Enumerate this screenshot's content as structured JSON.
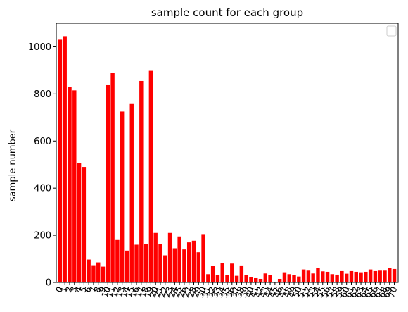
{
  "chart_data": {
    "type": "bar",
    "title": "sample count for each group",
    "xlabel": "",
    "ylabel": "sample number",
    "color": "#ff0000",
    "grid": false,
    "legend": "top-right",
    "ylim": [
      0,
      1100
    ],
    "yticks": [
      0,
      200,
      400,
      600,
      800,
      1000
    ],
    "categories": [
      "0",
      "1",
      "2",
      "3",
      "4",
      "5",
      "6",
      "7",
      "8",
      "9",
      "10",
      "11",
      "12",
      "13",
      "14",
      "15",
      "16",
      "17",
      "18",
      "19",
      "20",
      "21",
      "22",
      "23",
      "24",
      "25",
      "26",
      "27",
      "28",
      "29",
      "30",
      "31",
      "32",
      "33",
      "34",
      "35",
      "36",
      "37",
      "38",
      "39",
      "40",
      "41",
      "42",
      "43",
      "44",
      "45",
      "46",
      "47",
      "48",
      "49",
      "50",
      "51",
      "52",
      "53",
      "54",
      "55",
      "56",
      "57",
      "58",
      "59",
      "60",
      "61",
      "62",
      "63",
      "64",
      "65",
      "66",
      "67",
      "68",
      "69",
      "70"
    ],
    "values": [
      1030,
      1045,
      830,
      815,
      507,
      490,
      97,
      73,
      85,
      67,
      840,
      890,
      180,
      725,
      135,
      760,
      160,
      855,
      162,
      898,
      210,
      163,
      115,
      210,
      145,
      195,
      140,
      170,
      177,
      128,
      205,
      35,
      70,
      30,
      82,
      30,
      80,
      28,
      72,
      32,
      22,
      18,
      15,
      38,
      30,
      3,
      15,
      43,
      35,
      30,
      25,
      55,
      50,
      38,
      62,
      47,
      45,
      35,
      33,
      48,
      37,
      48,
      45,
      43,
      45,
      55,
      48,
      50,
      50,
      60,
      57
    ]
  }
}
